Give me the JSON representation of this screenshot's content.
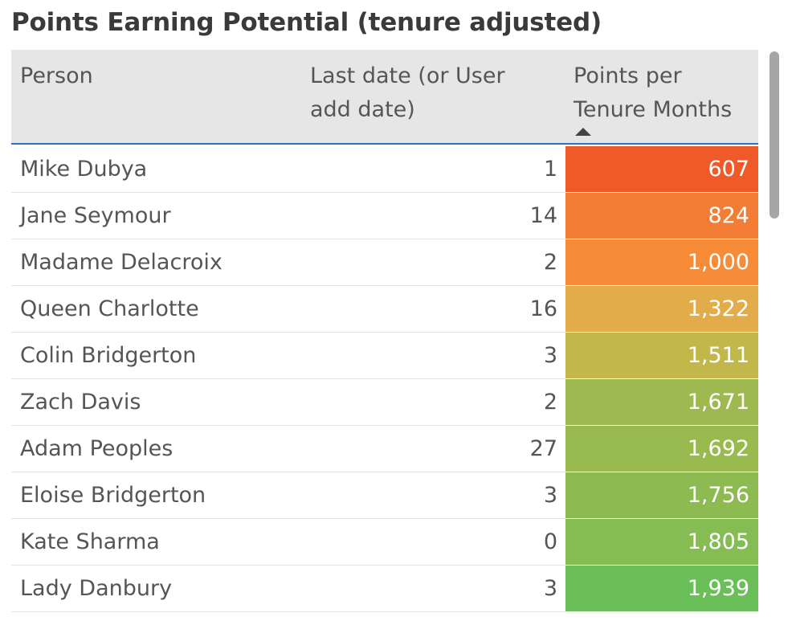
{
  "title": "Points Earning Potential (tenure adjusted)",
  "columns": {
    "person": "Person",
    "last_date": "Last date (or User add date)",
    "points": "Points per Tenure Months"
  },
  "sort": {
    "column": "points",
    "direction": "ascending"
  },
  "rows": [
    {
      "person": "Mike Dubya",
      "last": "1",
      "points": "607",
      "color": "#f05a28"
    },
    {
      "person": "Jane Seymour",
      "last": "14",
      "points": "824",
      "color": "#f37d35"
    },
    {
      "person": "Madame Delacroix",
      "last": "2",
      "points": "1,000",
      "color": "#f68c38"
    },
    {
      "person": "Queen Charlotte",
      "last": "16",
      "points": "1,322",
      "color": "#e3ac4b"
    },
    {
      "person": "Colin Bridgerton",
      "last": "3",
      "points": "1,511",
      "color": "#c1b74a"
    },
    {
      "person": "Zach Davis",
      "last": "2",
      "points": "1,671",
      "color": "#9eb94f"
    },
    {
      "person": "Adam Peoples",
      "last": "27",
      "points": "1,692",
      "color": "#99ba4f"
    },
    {
      "person": "Eloise Bridgerton",
      "last": "3",
      "points": "1,756",
      "color": "#8dba51"
    },
    {
      "person": "Kate Sharma",
      "last": "0",
      "points": "1,805",
      "color": "#85bc53"
    },
    {
      "person": "Lady Danbury",
      "last": "3",
      "points": "1,939",
      "color": "#6bbf59"
    }
  ]
}
